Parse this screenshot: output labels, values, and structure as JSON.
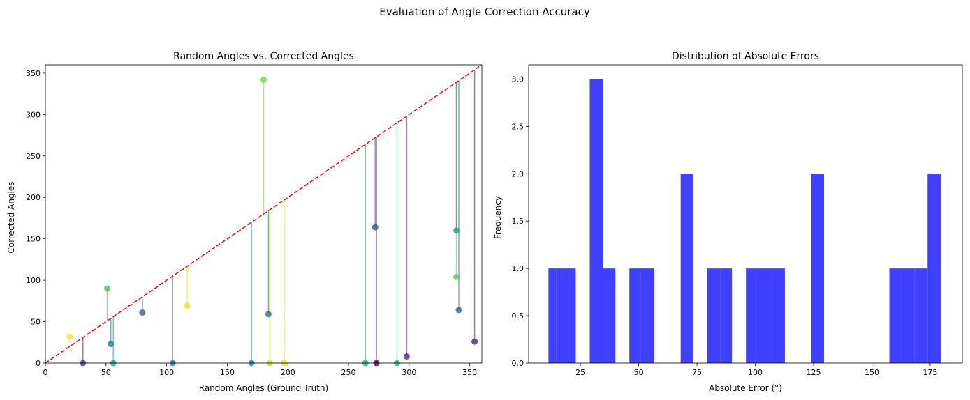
{
  "figure": {
    "suptitle": "Evaluation of Angle Correction Accuracy"
  },
  "chart_data": [
    {
      "type": "scatter",
      "title": "Random Angles vs. Corrected Angles",
      "xlabel": "Random Angles (Ground Truth)",
      "ylabel": "Corrected Angles",
      "xlim": [
        0,
        360
      ],
      "ylim": [
        0,
        360
      ],
      "xticks": [
        0,
        50,
        100,
        150,
        200,
        250,
        300,
        350
      ],
      "yticks": [
        0,
        50,
        100,
        150,
        200,
        250,
        300,
        350
      ],
      "grid": false,
      "reference_line": {
        "from": [
          0,
          0
        ],
        "to": [
          360,
          360
        ],
        "color": "#ff0000",
        "style": "dashed"
      },
      "colormap": "viridis",
      "points": [
        {
          "x": 20,
          "y": 32,
          "color": "#fde725"
        },
        {
          "x": 31,
          "y": 0,
          "color": "#46327e"
        },
        {
          "x": 51,
          "y": 90,
          "color": "#4ac16d"
        },
        {
          "x": 54,
          "y": 23,
          "color": "#277f8e"
        },
        {
          "x": 56,
          "y": 0,
          "color": "#1fa187"
        },
        {
          "x": 80,
          "y": 61,
          "color": "#365c8d"
        },
        {
          "x": 105,
          "y": 0,
          "color": "#2a788e"
        },
        {
          "x": 117,
          "y": 69,
          "color": "#e5e419"
        },
        {
          "x": 170,
          "y": 0,
          "color": "#21918c"
        },
        {
          "x": 180,
          "y": 342,
          "color": "#7ad151"
        },
        {
          "x": 184,
          "y": 59,
          "color": "#2c728e"
        },
        {
          "x": 185,
          "y": 0,
          "color": "#c8e020"
        },
        {
          "x": 197,
          "y": 0,
          "color": "#d8e219"
        },
        {
          "x": 264,
          "y": 0,
          "color": "#22a884"
        },
        {
          "x": 272,
          "y": 164,
          "color": "#3b528b"
        },
        {
          "x": 273,
          "y": 0,
          "color": "#440154"
        },
        {
          "x": 290,
          "y": 0,
          "color": "#35b779"
        },
        {
          "x": 298,
          "y": 8,
          "color": "#472d7b"
        },
        {
          "x": 339,
          "y": 104,
          "color": "#5ec962"
        },
        {
          "x": 339,
          "y": 160,
          "color": "#1f968b"
        },
        {
          "x": 341,
          "y": 64,
          "color": "#31688e"
        },
        {
          "x": 354,
          "y": 26,
          "color": "#482878"
        }
      ]
    },
    {
      "type": "bar",
      "subtype": "histogram",
      "title": "Distribution of Absolute Errors",
      "xlabel": "Absolute Error (°)",
      "ylabel": "Frequency",
      "xlim": [
        2.8,
        188.8
      ],
      "ylim": [
        0,
        3.15
      ],
      "xticks": [
        25,
        50,
        75,
        100,
        125,
        150,
        175
      ],
      "yticks": [
        0.0,
        0.5,
        1.0,
        1.5,
        2.0,
        2.5,
        3.0
      ],
      "bar_color": "#4040ff",
      "grid": false,
      "bins": [
        {
          "start": 11.3,
          "end": 14.6,
          "count": 1
        },
        {
          "start": 14.6,
          "end": 18.0,
          "count": 1
        },
        {
          "start": 18.0,
          "end": 23.0,
          "count": 1
        },
        {
          "start": 29.0,
          "end": 34.8,
          "count": 3
        },
        {
          "start": 34.8,
          "end": 40.0,
          "count": 1
        },
        {
          "start": 46.0,
          "end": 51.0,
          "count": 1
        },
        {
          "start": 51.0,
          "end": 56.7,
          "count": 1
        },
        {
          "start": 68.0,
          "end": 73.3,
          "count": 2
        },
        {
          "start": 79.3,
          "end": 84.9,
          "count": 1
        },
        {
          "start": 84.9,
          "end": 90.0,
          "count": 1
        },
        {
          "start": 96.0,
          "end": 101.3,
          "count": 1
        },
        {
          "start": 101.3,
          "end": 106.9,
          "count": 1
        },
        {
          "start": 106.9,
          "end": 112.7,
          "count": 1
        },
        {
          "start": 123.9,
          "end": 129.5,
          "count": 2
        },
        {
          "start": 157.5,
          "end": 162.6,
          "count": 1
        },
        {
          "start": 162.6,
          "end": 168.2,
          "count": 1
        },
        {
          "start": 168.2,
          "end": 173.9,
          "count": 1
        },
        {
          "start": 173.9,
          "end": 179.5,
          "count": 2
        }
      ]
    }
  ]
}
